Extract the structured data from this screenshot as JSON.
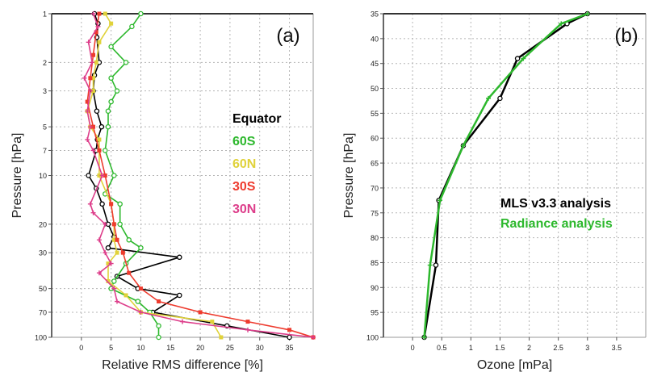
{
  "chart_data": [
    {
      "type": "line",
      "panel_label": "(a)",
      "xlabel": "Relative RMS difference [%]",
      "ylabel": "Pressure [hPa]",
      "xlim": [
        -5,
        39
      ],
      "ylim": [
        1,
        100
      ],
      "yscale": "log",
      "xticks": [
        0,
        5,
        10,
        15,
        20,
        25,
        30,
        35
      ],
      "yticks": [
        1,
        2,
        3,
        5,
        7,
        10,
        20,
        30,
        50,
        70,
        100
      ],
      "grid": true,
      "legend_position": "right",
      "series": [
        {
          "name": "Equator",
          "color": "#000000",
          "marker": "circle",
          "x": [
            2.2,
            2.8,
            2.6,
            3.0,
            2.2,
            2.0,
            2.6,
            3.4,
            2.7,
            2.5,
            1.2,
            2.5,
            3.5,
            4.5,
            5.5,
            4.5,
            16.5,
            6.0,
            9.5,
            16.5,
            12.0,
            24.5,
            35.0
          ],
          "y": [
            1,
            1.15,
            1.4,
            2,
            2.4,
            3,
            4,
            5,
            6,
            7,
            10,
            12,
            15,
            20,
            24,
            28,
            32,
            42,
            50,
            55,
            70,
            85,
            100
          ]
        },
        {
          "name": "60S",
          "color": "#2db82d",
          "marker": "circle",
          "x": [
            10.0,
            8.5,
            5.0,
            7.5,
            5.0,
            6.0,
            5.0,
            4.5,
            4.5,
            4.0,
            5.5,
            4.0,
            6.5,
            6.5,
            8.0,
            10.0,
            7.5,
            5.5,
            5.0,
            9.5,
            11.5,
            13.0,
            13.0
          ],
          "y": [
            1,
            1.2,
            1.6,
            2,
            2.5,
            3,
            3.5,
            4,
            5,
            7,
            10,
            13,
            15,
            20,
            25,
            28,
            35,
            45,
            50,
            60,
            70,
            85,
            100
          ]
        },
        {
          "name": "60N",
          "color": "#e0d23a",
          "marker": "square",
          "x": [
            4.0,
            5.0,
            3.0,
            2.5,
            2.0,
            2.0,
            1.0,
            1.5,
            3.0,
            3.0,
            3.0,
            5.0,
            5.5,
            5.5,
            6.0,
            4.5,
            4.5,
            7.5,
            10.0,
            22.0,
            23.5
          ],
          "y": [
            1,
            1.15,
            1.5,
            2,
            2.5,
            3,
            4,
            5,
            6,
            7,
            10,
            15,
            20,
            25,
            30,
            35,
            45,
            55,
            70,
            80,
            100
          ]
        },
        {
          "name": "30S",
          "color": "#ee3b2e",
          "marker": "square",
          "x": [
            3.0,
            2.5,
            2.0,
            1.5,
            1.0,
            2.0,
            3.0,
            4.0,
            5.0,
            5.5,
            6.0,
            7.0,
            8.0,
            10.0,
            13.0,
            20.0,
            28.0,
            35.0,
            39.0
          ],
          "y": [
            1,
            1.3,
            1.8,
            2.5,
            3.5,
            5,
            7,
            10,
            15,
            20,
            25,
            30,
            40,
            50,
            60,
            70,
            80,
            90,
            100
          ]
        },
        {
          "name": "30N",
          "color": "#dd3d8a",
          "marker": "plus",
          "x": [
            2.0,
            2.8,
            1.2,
            1.8,
            0.5,
            1.5,
            1.0,
            1.5,
            1.0,
            2.0,
            3.5,
            1.5,
            2.0,
            4.0,
            3.0,
            4.0,
            5.0,
            3.0,
            5.5,
            6.0,
            10.0,
            17.0,
            28.0,
            39.0
          ],
          "y": [
            1,
            1.2,
            1.5,
            2,
            2.5,
            3,
            4,
            5,
            6,
            7,
            10,
            15,
            17,
            20,
            25,
            30,
            35,
            40,
            50,
            60,
            70,
            80,
            90,
            100
          ]
        }
      ]
    },
    {
      "type": "line",
      "panel_label": "(b)",
      "xlabel": "Ozone [mPa]",
      "ylabel": "Pressure [hPa]",
      "xlim": [
        -0.5,
        4
      ],
      "ylim": [
        35,
        100
      ],
      "xticks": [
        0,
        0.5,
        1,
        1.5,
        2,
        2.5,
        3,
        3.5
      ],
      "yticks": [
        35,
        40,
        45,
        50,
        55,
        60,
        65,
        70,
        75,
        80,
        85,
        90,
        95,
        100
      ],
      "grid": true,
      "legend_position": "right",
      "series": [
        {
          "name": "MLS v3.3 analysis",
          "color": "#000000",
          "marker": "circle",
          "x": [
            3.0,
            2.65,
            1.8,
            1.5,
            0.87,
            0.45,
            0.4,
            0.2
          ],
          "y": [
            35,
            37,
            44,
            52,
            61.5,
            72.5,
            85.5,
            100
          ]
        },
        {
          "name": "Radiance analysis",
          "color": "#2db82d",
          "marker": "plus",
          "x": [
            3.0,
            2.55,
            1.9,
            1.3,
            0.87,
            0.47,
            0.3,
            0.2
          ],
          "y": [
            35,
            37,
            44,
            52,
            61.5,
            72.5,
            85.5,
            100
          ]
        }
      ]
    }
  ]
}
